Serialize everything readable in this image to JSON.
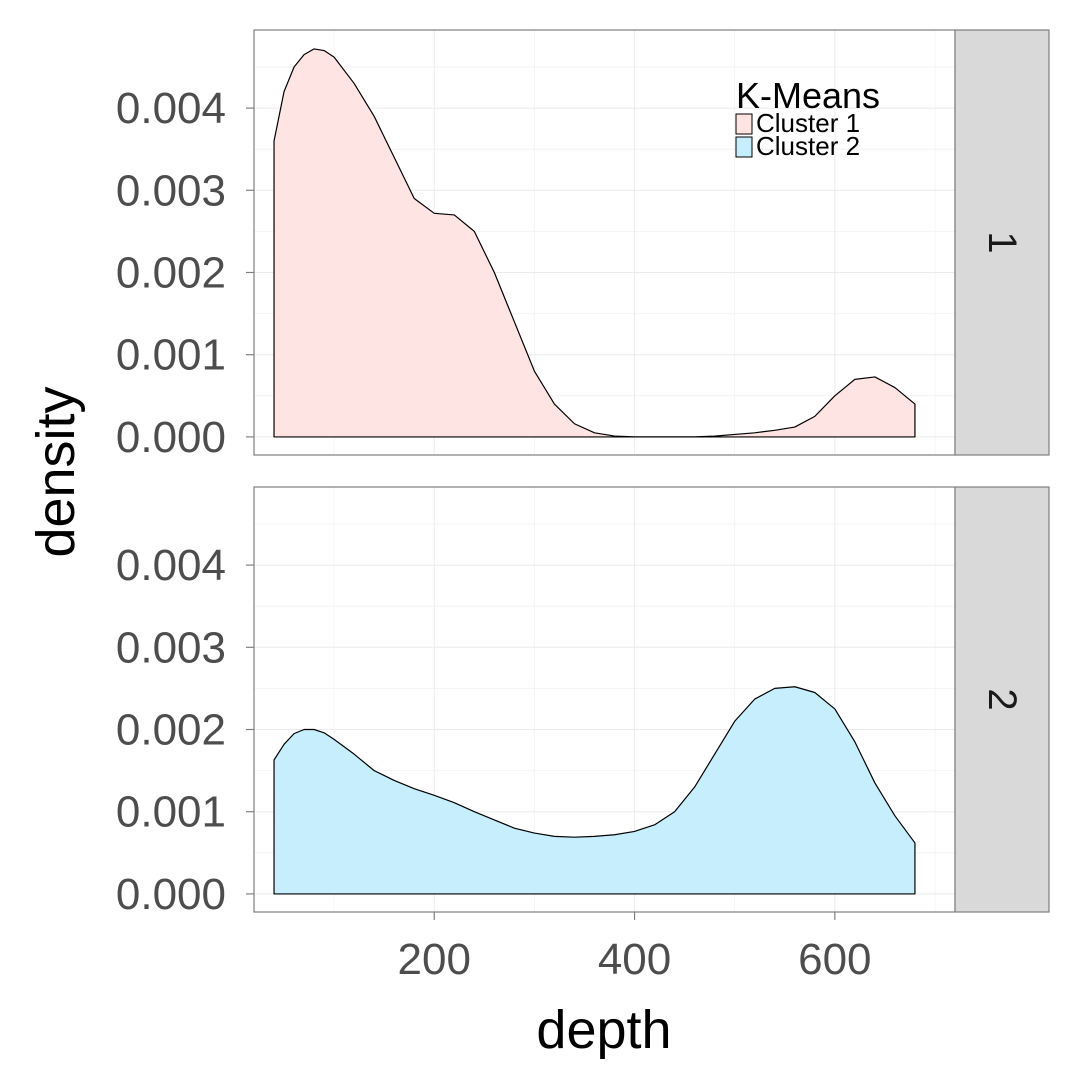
{
  "chart_data": {
    "type": "area",
    "chart_kind": "faceted density plot",
    "facet_variable": "facet",
    "facets": [
      "1",
      "2"
    ],
    "xlabel": "depth",
    "ylabel": "density",
    "xlim": [
      20,
      720
    ],
    "ylim": [
      -0.00022,
      0.00495
    ],
    "x_ticks": [
      200,
      400,
      600
    ],
    "x_tick_labels": [
      "200",
      "400",
      "600"
    ],
    "y_ticks": [
      0.0,
      0.001,
      0.002,
      0.003,
      0.004
    ],
    "y_tick_labels": [
      "0.000",
      "0.001",
      "0.002",
      "0.003",
      "0.004"
    ],
    "grid": true,
    "legend": {
      "title": "K-Means",
      "placement": "top-right inside panel 1",
      "entries": [
        "Cluster 1",
        "Cluster 2"
      ]
    },
    "series": [
      {
        "name": "Cluster 1",
        "facet": "1",
        "fill": "#ffe4e4",
        "x": [
          40,
          50,
          60,
          70,
          80,
          90,
          100,
          120,
          140,
          160,
          180,
          200,
          220,
          240,
          260,
          280,
          300,
          320,
          340,
          360,
          380,
          400,
          420,
          440,
          460,
          480,
          500,
          520,
          540,
          560,
          580,
          600,
          620,
          640,
          660,
          680
        ],
        "values": [
          0.0036,
          0.0042,
          0.0045,
          0.00465,
          0.00472,
          0.0047,
          0.00462,
          0.0043,
          0.0039,
          0.0034,
          0.0029,
          0.00272,
          0.0027,
          0.0025,
          0.002,
          0.0014,
          0.0008,
          0.0004,
          0.00016,
          5e-05,
          1e-05,
          0.0,
          0.0,
          0.0,
          0.0,
          1e-05,
          3e-05,
          5e-05,
          8e-05,
          0.00012,
          0.00025,
          0.0005,
          0.0007,
          0.00073,
          0.0006,
          0.0004
        ]
      },
      {
        "name": "Cluster 2",
        "facet": "2",
        "fill": "#c6eefc",
        "x": [
          40,
          50,
          60,
          70,
          80,
          90,
          100,
          120,
          140,
          160,
          180,
          200,
          220,
          240,
          260,
          280,
          300,
          320,
          340,
          360,
          380,
          400,
          420,
          440,
          460,
          480,
          500,
          520,
          540,
          560,
          580,
          600,
          620,
          640,
          660,
          680
        ],
        "values": [
          0.00163,
          0.00182,
          0.00195,
          0.002,
          0.002,
          0.00196,
          0.00188,
          0.0017,
          0.0015,
          0.00138,
          0.00128,
          0.0012,
          0.00111,
          0.001,
          0.0009,
          0.0008,
          0.00074,
          0.0007,
          0.00069,
          0.0007,
          0.00072,
          0.00076,
          0.00084,
          0.001,
          0.0013,
          0.0017,
          0.0021,
          0.00237,
          0.0025,
          0.00252,
          0.00245,
          0.00225,
          0.00185,
          0.00135,
          0.00095,
          0.00062
        ]
      }
    ]
  }
}
